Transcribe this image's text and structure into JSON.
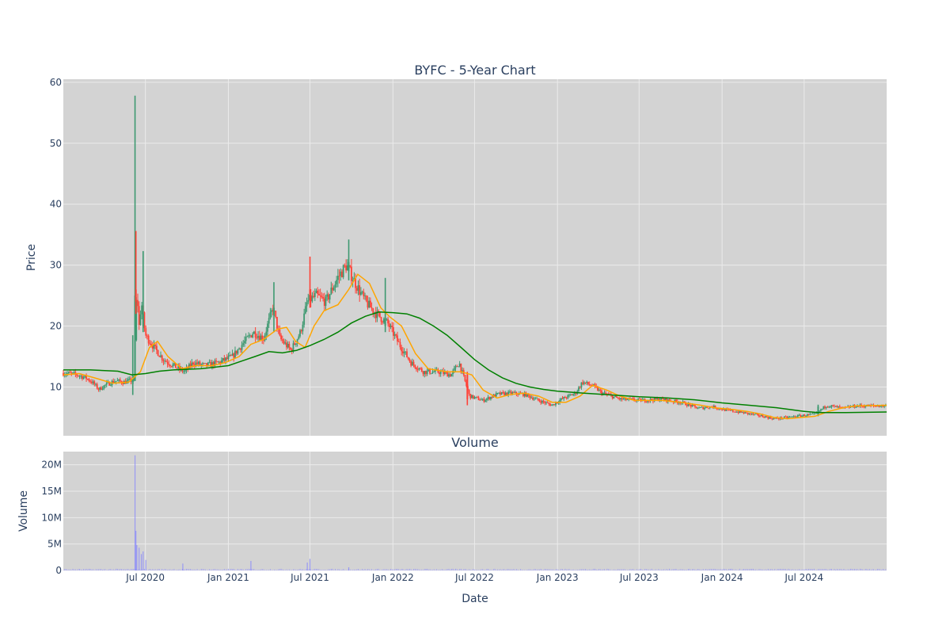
{
  "chart_data": [
    {
      "type": "candlestick",
      "title": "BYFC - 5-Year Chart",
      "ylabel": "Price",
      "ylim": [
        2,
        60.5
      ],
      "yticks": [
        10,
        20,
        30,
        40,
        50,
        60
      ],
      "grid": true,
      "colors": {
        "up": "#3d9970",
        "down": "#ff4136",
        "ma_short": "#ffa500",
        "ma_long": "#008000",
        "background": "#d3d3d3",
        "grid": "#ebebeb"
      },
      "x_range": [
        "2020-01-01",
        "2024-12-31"
      ],
      "price_path": [
        [
          "2020-01-01",
          12.3
        ],
        [
          "2020-02-01",
          12.0
        ],
        [
          "2020-02-20",
          11.5
        ],
        [
          "2020-03-05",
          10.8
        ],
        [
          "2020-03-20",
          9.6
        ],
        [
          "2020-04-05",
          10.4
        ],
        [
          "2020-04-25",
          11.0
        ],
        [
          "2020-05-15",
          10.8
        ],
        [
          "2020-06-05",
          11.2
        ],
        [
          "2020-06-12",
          26.0
        ],
        [
          "2020-06-17",
          20.0
        ],
        [
          "2020-06-22",
          24.0
        ],
        [
          "2020-07-01",
          18.5
        ],
        [
          "2020-07-20",
          16.5
        ],
        [
          "2020-08-10",
          14.5
        ],
        [
          "2020-09-01",
          13.5
        ],
        [
          "2020-09-25",
          12.5
        ],
        [
          "2020-10-15",
          14.0
        ],
        [
          "2020-11-10",
          13.5
        ],
        [
          "2020-12-10",
          14.0
        ],
        [
          "2021-01-10",
          15.0
        ],
        [
          "2021-02-01",
          17.0
        ],
        [
          "2021-02-25",
          19.0
        ],
        [
          "2021-03-20",
          18.0
        ],
        [
          "2021-04-10",
          23.0
        ],
        [
          "2021-04-25",
          18.0
        ],
        [
          "2021-05-20",
          16.0
        ],
        [
          "2021-06-10",
          19.0
        ],
        [
          "2021-06-25",
          24.0
        ],
        [
          "2021-07-15",
          25.0
        ],
        [
          "2021-08-05",
          24.0
        ],
        [
          "2021-09-01",
          28.0
        ],
        [
          "2021-09-20",
          30.0
        ],
        [
          "2021-10-10",
          27.0
        ],
        [
          "2021-11-01",
          24.0
        ],
        [
          "2021-11-25",
          22.0
        ],
        [
          "2021-12-20",
          20.5
        ],
        [
          "2022-01-15",
          17.0
        ],
        [
          "2022-02-10",
          14.0
        ],
        [
          "2022-03-10",
          12.5
        ],
        [
          "2022-04-10",
          12.5
        ],
        [
          "2022-05-10",
          12.0
        ],
        [
          "2022-05-28",
          14.0
        ],
        [
          "2022-06-20",
          8.5
        ],
        [
          "2022-07-20",
          7.8
        ],
        [
          "2022-08-20",
          8.8
        ],
        [
          "2022-09-20",
          9.0
        ],
        [
          "2022-10-20",
          8.8
        ],
        [
          "2022-11-20",
          7.8
        ],
        [
          "2022-12-20",
          7.0
        ],
        [
          "2023-01-10",
          8.0
        ],
        [
          "2023-02-10",
          9.0
        ],
        [
          "2023-02-25",
          10.8
        ],
        [
          "2023-03-20",
          10.2
        ],
        [
          "2023-04-10",
          9.0
        ],
        [
          "2023-05-20",
          8.0
        ],
        [
          "2023-07-10",
          7.8
        ],
        [
          "2023-08-15",
          8.0
        ],
        [
          "2023-10-01",
          7.5
        ],
        [
          "2023-11-10",
          6.5
        ],
        [
          "2023-12-10",
          6.8
        ],
        [
          "2024-01-10",
          6.2
        ],
        [
          "2024-02-15",
          5.8
        ],
        [
          "2024-03-25",
          5.3
        ],
        [
          "2024-04-25",
          4.8
        ],
        [
          "2024-05-25",
          5.0
        ],
        [
          "2024-06-25",
          5.3
        ],
        [
          "2024-07-25",
          5.5
        ],
        [
          "2024-08-20",
          7.0
        ],
        [
          "2024-09-25",
          6.5
        ],
        [
          "2024-10-25",
          6.9
        ],
        [
          "2024-12-31",
          6.9
        ]
      ],
      "ma_short": [
        [
          "2020-01-01",
          12.0
        ],
        [
          "2020-02-05",
          12.2
        ],
        [
          "2020-03-10",
          11.5
        ],
        [
          "2020-04-20",
          10.6
        ],
        [
          "2020-05-25",
          10.8
        ],
        [
          "2020-06-20",
          12.5
        ],
        [
          "2020-07-10",
          16.5
        ],
        [
          "2020-07-28",
          17.5
        ],
        [
          "2020-08-20",
          15.0
        ],
        [
          "2020-09-20",
          13.0
        ],
        [
          "2020-10-20",
          13.5
        ],
        [
          "2020-11-25",
          13.5
        ],
        [
          "2020-12-25",
          14.0
        ],
        [
          "2021-01-25",
          15.0
        ],
        [
          "2021-02-20",
          17.0
        ],
        [
          "2021-03-20",
          17.8
        ],
        [
          "2021-04-20",
          19.5
        ],
        [
          "2021-05-10",
          19.8
        ],
        [
          "2021-05-30",
          17.5
        ],
        [
          "2021-06-20",
          16.5
        ],
        [
          "2021-07-10",
          20.0
        ],
        [
          "2021-08-01",
          22.5
        ],
        [
          "2021-09-01",
          23.5
        ],
        [
          "2021-09-25",
          26.0
        ],
        [
          "2021-10-15",
          28.5
        ],
        [
          "2021-11-10",
          27.0
        ],
        [
          "2021-12-05",
          23.0
        ],
        [
          "2021-12-25",
          21.5
        ],
        [
          "2022-01-20",
          20.0
        ],
        [
          "2022-02-20",
          15.5
        ],
        [
          "2022-03-20",
          13.0
        ],
        [
          "2022-05-01",
          12.5
        ],
        [
          "2022-06-01",
          12.5
        ],
        [
          "2022-06-25",
          12.0
        ],
        [
          "2022-07-20",
          9.5
        ],
        [
          "2022-08-20",
          8.2
        ],
        [
          "2022-09-20",
          8.8
        ],
        [
          "2022-10-20",
          9.0
        ],
        [
          "2022-11-20",
          8.5
        ],
        [
          "2022-12-20",
          7.5
        ],
        [
          "2023-01-20",
          7.5
        ],
        [
          "2023-02-20",
          8.5
        ],
        [
          "2023-03-20",
          10.3
        ],
        [
          "2023-04-20",
          9.5
        ],
        [
          "2023-05-20",
          8.5
        ],
        [
          "2023-06-20",
          7.8
        ],
        [
          "2023-08-20",
          7.8
        ],
        [
          "2023-10-01",
          7.5
        ],
        [
          "2023-11-15",
          7.0
        ],
        [
          "2023-12-15",
          6.6
        ],
        [
          "2024-01-25",
          6.3
        ],
        [
          "2024-02-25",
          6.0
        ],
        [
          "2024-03-25",
          5.6
        ],
        [
          "2024-04-25",
          5.0
        ],
        [
          "2024-05-25",
          4.8
        ],
        [
          "2024-06-25",
          5.0
        ],
        [
          "2024-07-25",
          5.2
        ],
        [
          "2024-08-25",
          6.0
        ],
        [
          "2024-09-25",
          6.6
        ],
        [
          "2024-10-25",
          6.9
        ],
        [
          "2024-12-31",
          7.0
        ]
      ],
      "ma_long": [
        [
          "2020-01-01",
          12.8
        ],
        [
          "2020-03-01",
          12.8
        ],
        [
          "2020-05-01",
          12.6
        ],
        [
          "2020-06-01",
          12.0
        ],
        [
          "2020-07-01",
          12.2
        ],
        [
          "2020-08-01",
          12.6
        ],
        [
          "2020-09-01",
          12.8
        ],
        [
          "2020-11-01",
          13.0
        ],
        [
          "2021-01-01",
          13.5
        ],
        [
          "2021-02-01",
          14.3
        ],
        [
          "2021-03-01",
          15.0
        ],
        [
          "2021-04-01",
          15.8
        ],
        [
          "2021-05-01",
          15.6
        ],
        [
          "2021-06-01",
          16.0
        ],
        [
          "2021-07-01",
          16.8
        ],
        [
          "2021-08-01",
          17.8
        ],
        [
          "2021-09-01",
          19.0
        ],
        [
          "2021-10-01",
          20.5
        ],
        [
          "2021-11-01",
          21.6
        ],
        [
          "2021-12-01",
          22.3
        ],
        [
          "2022-01-01",
          22.2
        ],
        [
          "2022-02-01",
          22.0
        ],
        [
          "2022-03-01",
          21.3
        ],
        [
          "2022-04-01",
          20.0
        ],
        [
          "2022-05-01",
          18.5
        ],
        [
          "2022-06-01",
          16.5
        ],
        [
          "2022-07-01",
          14.5
        ],
        [
          "2022-08-01",
          12.8
        ],
        [
          "2022-09-01",
          11.5
        ],
        [
          "2022-10-01",
          10.6
        ],
        [
          "2022-11-01",
          10.0
        ],
        [
          "2022-12-01",
          9.6
        ],
        [
          "2023-01-01",
          9.3
        ],
        [
          "2023-03-01",
          9.0
        ],
        [
          "2023-05-01",
          8.7
        ],
        [
          "2023-07-01",
          8.4
        ],
        [
          "2023-09-01",
          8.2
        ],
        [
          "2023-11-01",
          7.9
        ],
        [
          "2024-01-01",
          7.4
        ],
        [
          "2024-03-01",
          7.0
        ],
        [
          "2024-05-01",
          6.6
        ],
        [
          "2024-07-01",
          6.0
        ],
        [
          "2024-08-01",
          5.8
        ],
        [
          "2024-10-01",
          5.8
        ],
        [
          "2024-12-31",
          5.9
        ]
      ],
      "spikes": [
        {
          "date": "2020-06-08",
          "open": 11.0,
          "high": 57.8,
          "low": 11.0,
          "close": 25.0
        },
        {
          "date": "2020-06-10",
          "open": 26.0,
          "high": 35.6,
          "low": 22.0,
          "close": 24.0
        },
        {
          "date": "2020-06-26",
          "open": 20.0,
          "high": 32.3,
          "low": 19.0,
          "close": 22.0
        },
        {
          "date": "2020-06-03",
          "open": 10.5,
          "high": 18.5,
          "low": 8.7,
          "close": 11.0
        },
        {
          "date": "2021-09-25",
          "open": 29.0,
          "high": 34.2,
          "low": 27.5,
          "close": 30.5
        },
        {
          "date": "2021-07-01",
          "open": 26.0,
          "high": 31.4,
          "low": 23.0,
          "close": 25.0
        },
        {
          "date": "2021-12-15",
          "open": 20.0,
          "high": 27.9,
          "low": 19.0,
          "close": 21.0
        },
        {
          "date": "2021-04-12",
          "open": 22.0,
          "high": 27.2,
          "low": 19.0,
          "close": 23.0
        },
        {
          "date": "2022-06-15",
          "open": 12.0,
          "high": 12.5,
          "low": 7.0,
          "close": 8.0
        },
        {
          "date": "2024-08-01",
          "open": 5.5,
          "high": 7.1,
          "low": 5.2,
          "close": 6.8
        }
      ]
    },
    {
      "type": "bar",
      "title": "Volume",
      "xlabel": "Date",
      "ylabel": "Volume",
      "ylim": [
        0,
        22500000
      ],
      "yticks": [
        0,
        5000000,
        10000000,
        15000000,
        20000000
      ],
      "ytick_labels": [
        "0",
        "5M",
        "10M",
        "15M",
        "20M"
      ],
      "xticks": [
        "2020-07-01",
        "2021-01-01",
        "2021-07-01",
        "2022-01-01",
        "2022-07-01",
        "2023-01-01",
        "2023-07-01",
        "2024-01-01",
        "2024-07-01"
      ],
      "xtick_labels": [
        "Jul 2020",
        "Jan 2021",
        "Jul 2021",
        "Jan 2022",
        "Jul 2022",
        "Jan 2023",
        "Jul 2023",
        "Jan 2024",
        "Jul 2024"
      ],
      "bar_color": "#8080ff",
      "grid": true,
      "notable_volumes": [
        {
          "date": "2020-06-08",
          "value": 21800000
        },
        {
          "date": "2020-06-10",
          "value": 7500000
        },
        {
          "date": "2020-06-12",
          "value": 4800000
        },
        {
          "date": "2020-06-17",
          "value": 4300000
        },
        {
          "date": "2020-06-22",
          "value": 3100000
        },
        {
          "date": "2020-06-26",
          "value": 3600000
        },
        {
          "date": "2020-07-02",
          "value": 2000000
        },
        {
          "date": "2020-09-22",
          "value": 1300000
        },
        {
          "date": "2021-02-20",
          "value": 1800000
        },
        {
          "date": "2021-06-25",
          "value": 1500000
        },
        {
          "date": "2021-07-01",
          "value": 2200000
        },
        {
          "date": "2021-09-25",
          "value": 600000
        }
      ],
      "baseline_volume": 200000
    }
  ]
}
